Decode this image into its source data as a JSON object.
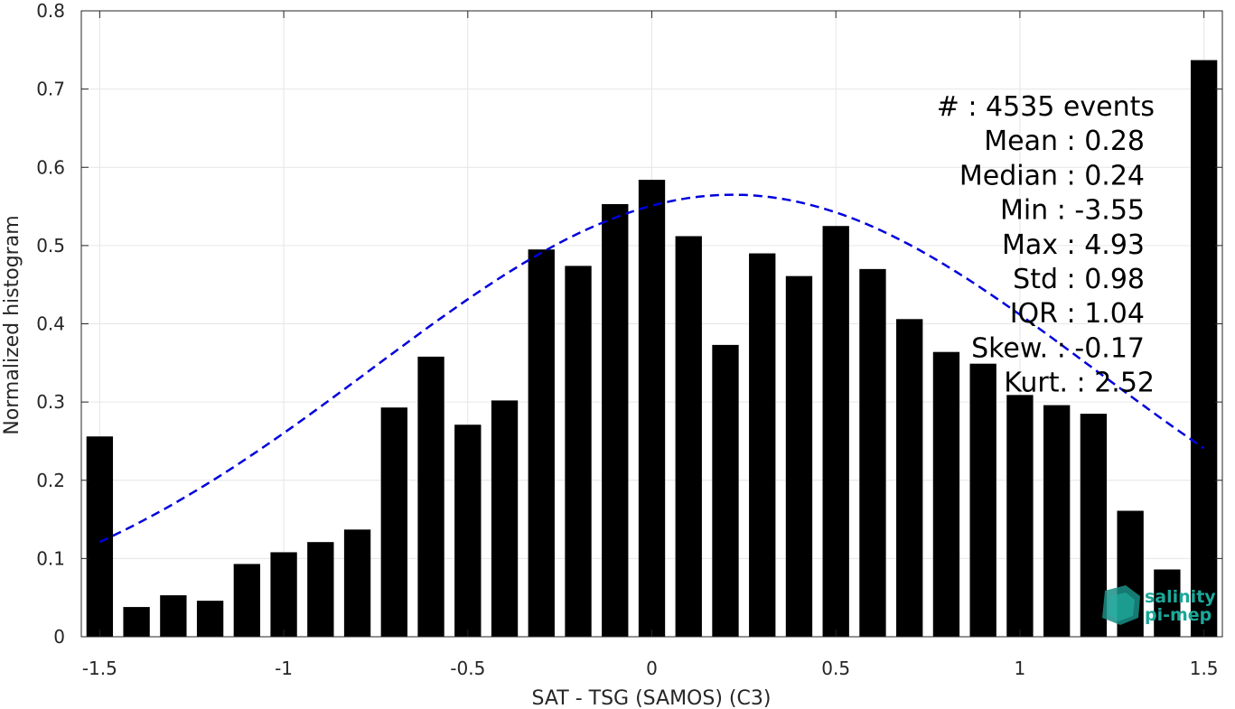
{
  "chart_data": {
    "type": "bar",
    "xlabel": "SAT - TSG (SAMOS) (C3)",
    "ylabel": "Normalized histogram",
    "xlim": [
      -1.55,
      1.55
    ],
    "ylim": [
      0,
      0.8
    ],
    "xticks": [
      -1.5,
      -1,
      -0.5,
      0,
      0.5,
      1,
      1.5
    ],
    "xtick_labels": [
      "-1.5",
      "-1",
      "-0.5",
      "0",
      "0.5",
      "1",
      "1.5"
    ],
    "yticks": [
      0,
      0.1,
      0.2,
      0.3,
      0.4,
      0.5,
      0.6,
      0.7,
      0.8
    ],
    "ytick_labels": [
      "0",
      "0.1",
      "0.2",
      "0.3",
      "0.4",
      "0.5",
      "0.6",
      "0.7",
      "0.8"
    ],
    "grid": true,
    "bar_color": "#000000",
    "fit_color": "#0000dd",
    "bins": [
      -1.5,
      -1.4,
      -1.3,
      -1.2,
      -1.1,
      -1.0,
      -0.9,
      -0.8,
      -0.7,
      -0.6,
      -0.5,
      -0.4,
      -0.3,
      -0.2,
      -0.1,
      0.0,
      0.1,
      0.2,
      0.3,
      0.4,
      0.5,
      0.6,
      0.7,
      0.8,
      0.9,
      1.0,
      1.1,
      1.2,
      1.3,
      1.4,
      1.5
    ],
    "values": [
      0.256,
      0.038,
      0.053,
      0.046,
      0.093,
      0.108,
      0.121,
      0.137,
      0.293,
      0.358,
      0.271,
      0.302,
      0.495,
      0.474,
      0.553,
      0.584,
      0.512,
      0.373,
      0.49,
      0.461,
      0.525,
      0.47,
      0.406,
      0.364,
      0.349,
      0.309,
      0.296,
      0.285,
      0.161,
      0.086,
      0.737
    ],
    "fit": {
      "type": "gaussian",
      "style": "dashed",
      "x_range": [
        -1.5,
        1.5
      ],
      "mean": 0.22,
      "std": 0.98,
      "peak": 0.565
    },
    "stats": [
      "#  : 4535 events",
      "Mean : 0.28",
      "Median : 0.24",
      "Min : -3.55",
      "Max : 4.93",
      "Std : 0.98",
      "IQR : 1.04",
      "Skew. : -0.17",
      "Kurt. : 2.52"
    ]
  },
  "logo": {
    "line1": "salinity",
    "line2": "pi-mep",
    "color": "#1aa89a"
  }
}
